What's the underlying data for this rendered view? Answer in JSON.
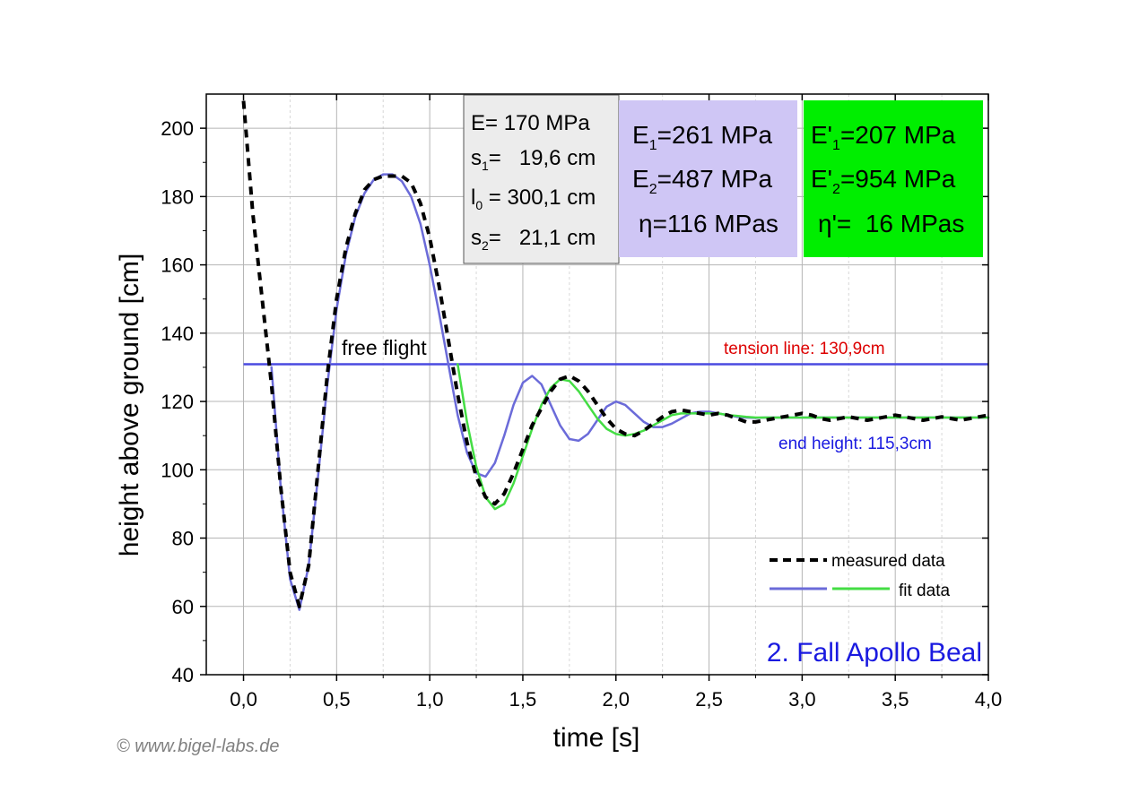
{
  "chart_data": {
    "type": "line",
    "xlabel": "time [s]",
    "ylabel": "height above ground [cm]",
    "xlim": [
      -0.2,
      4.0
    ],
    "ylim": [
      40,
      210
    ],
    "x_ticks": [
      "0,0",
      "0,5",
      "1,0",
      "1,5",
      "2,0",
      "2,5",
      "3,0",
      "3,5",
      "4,0"
    ],
    "y_ticks": [
      "40",
      "60",
      "80",
      "100",
      "120",
      "140",
      "160",
      "180",
      "200"
    ],
    "grid": true,
    "legend_position": "bottom-right",
    "series": [
      {
        "name": "measured data",
        "style": "dashed",
        "color": "#000000",
        "x": [
          0.0,
          0.05,
          0.1,
          0.15,
          0.2,
          0.25,
          0.3,
          0.35,
          0.4,
          0.45,
          0.5,
          0.55,
          0.6,
          0.65,
          0.7,
          0.75,
          0.8,
          0.85,
          0.9,
          0.95,
          1.0,
          1.05,
          1.1,
          1.15,
          1.2,
          1.25,
          1.3,
          1.35,
          1.4,
          1.45,
          1.5,
          1.55,
          1.6,
          1.65,
          1.7,
          1.75,
          1.8,
          1.85,
          1.9,
          1.95,
          2.0,
          2.05,
          2.1,
          2.15,
          2.2,
          2.25,
          2.3,
          2.35,
          2.4,
          2.45,
          2.5,
          2.55,
          2.6,
          2.65,
          2.7,
          2.75,
          2.8,
          2.85,
          2.9,
          2.95,
          3.0,
          3.05,
          3.1,
          3.15,
          3.2,
          3.25,
          3.3,
          3.35,
          3.4,
          3.45,
          3.5,
          3.55,
          3.6,
          3.65,
          3.7,
          3.75,
          3.8,
          3.85,
          3.9,
          3.95,
          4.0
        ],
        "y": [
          208.0,
          175.0,
          150.0,
          125.0,
          95.0,
          70.0,
          60.0,
          72.0,
          100.0,
          128.0,
          150.0,
          165.0,
          175.0,
          182.0,
          185.0,
          186.0,
          186.0,
          186.0,
          184.0,
          178.0,
          168.0,
          154.0,
          138.0,
          122.0,
          108.0,
          98.0,
          92.0,
          90.0,
          93.0,
          99.0,
          106.0,
          113.0,
          118.0,
          123.0,
          126.5,
          127.5,
          126.0,
          123.0,
          119.0,
          115.0,
          112.0,
          110.5,
          110.0,
          111.5,
          113.5,
          115.5,
          117.0,
          117.5,
          117.0,
          116.5,
          116.0,
          116.5,
          116.0,
          115.0,
          114.0,
          114.0,
          114.5,
          115.0,
          115.5,
          116.0,
          116.5,
          116.0,
          115.0,
          114.5,
          115.0,
          115.5,
          115.0,
          114.5,
          115.0,
          115.5,
          116.0,
          115.5,
          115.0,
          114.5,
          115.0,
          115.5,
          115.0,
          114.5,
          115.0,
          115.5,
          116.0
        ]
      },
      {
        "name": "fit data",
        "style": "solid",
        "color": "#6b6bd9",
        "x": [
          0.15,
          0.2,
          0.25,
          0.3,
          0.35,
          0.4,
          0.45,
          0.5,
          0.55,
          0.6,
          0.65,
          0.7,
          0.75,
          0.8,
          0.85,
          0.9,
          0.95,
          1.0,
          1.05,
          1.1,
          1.15,
          1.2,
          1.25,
          1.3,
          1.35,
          1.4,
          1.45,
          1.5,
          1.55,
          1.6,
          1.65,
          1.7,
          1.75,
          1.8,
          1.85,
          1.9,
          1.95,
          2.0,
          2.05,
          2.1,
          2.15,
          2.2,
          2.25,
          2.3,
          2.35,
          2.4,
          2.45,
          2.5,
          2.55,
          2.6,
          2.65,
          2.7,
          2.75,
          2.8,
          2.85,
          2.9,
          2.95,
          3.0,
          3.05,
          3.1,
          3.15,
          3.2,
          3.25,
          3.3,
          3.35,
          3.4,
          3.45,
          3.5,
          3.55,
          3.6,
          3.65,
          3.7,
          3.75,
          3.8,
          3.85,
          3.9,
          3.95,
          4.0
        ],
        "y": [
          130.0,
          95.0,
          68.0,
          59.0,
          72.0,
          98.0,
          125.0,
          147.0,
          163.0,
          174.0,
          181.0,
          185.0,
          186.5,
          186.5,
          184.5,
          180.0,
          172.0,
          160.0,
          146.0,
          130.9,
          116.0,
          105.0,
          99.0,
          98.0,
          102.0,
          110.0,
          119.0,
          125.5,
          127.5,
          125.0,
          119.0,
          113.0,
          109.0,
          108.5,
          110.5,
          114.5,
          118.5,
          120.0,
          119.0,
          116.5,
          114.0,
          112.5,
          112.5,
          113.5,
          115.0,
          116.5,
          117.0,
          117.0,
          116.5,
          116.0,
          115.5,
          115.3,
          115.2,
          115.3,
          115.3,
          115.3,
          115.3,
          115.3,
          115.3,
          115.3,
          115.3,
          115.3,
          115.3,
          115.3,
          115.3,
          115.3,
          115.3,
          115.3,
          115.3,
          115.3,
          115.3,
          115.3,
          115.3,
          115.3,
          115.3,
          115.3,
          115.3,
          115.3
        ]
      },
      {
        "name": "fit data",
        "style": "solid",
        "color": "#44dd44",
        "x": [
          1.15,
          1.2,
          1.25,
          1.3,
          1.35,
          1.4,
          1.45,
          1.5,
          1.55,
          1.6,
          1.65,
          1.7,
          1.75,
          1.8,
          1.85,
          1.9,
          1.95,
          2.0,
          2.05,
          2.1,
          2.15,
          2.2,
          2.25,
          2.3,
          2.35,
          2.4,
          2.45,
          2.5,
          2.55,
          2.6,
          2.65,
          2.7,
          2.75,
          2.8,
          2.85,
          2.9,
          2.95,
          3.0,
          3.05,
          3.1,
          3.15,
          3.2,
          3.25,
          3.3,
          3.35,
          3.4,
          3.45,
          3.5,
          3.55,
          3.6,
          3.65,
          3.7,
          3.75,
          3.8,
          3.85,
          3.9,
          3.95,
          4.0
        ],
        "y": [
          130.9,
          114.0,
          101.0,
          92.0,
          88.5,
          90.0,
          96.0,
          104.0,
          112.0,
          119.0,
          124.0,
          126.5,
          126.0,
          123.0,
          119.0,
          115.0,
          112.0,
          110.5,
          110.0,
          110.5,
          111.5,
          113.0,
          114.5,
          116.0,
          116.5,
          116.5,
          116.5,
          116.5,
          116.5,
          116.0,
          115.8,
          115.5,
          115.3,
          115.3,
          115.3,
          115.3,
          115.3,
          115.3,
          115.3,
          115.3,
          115.3,
          115.3,
          115.3,
          115.3,
          115.3,
          115.3,
          115.3,
          115.3,
          115.3,
          115.3,
          115.3,
          115.3,
          115.3,
          115.3,
          115.3,
          115.3,
          115.3,
          115.3
        ]
      }
    ],
    "reference_lines": [
      {
        "y": 130.9,
        "x_from": 0.0,
        "color": "#4a4ae0",
        "label": "tension line: 130,9cm",
        "label_color": "#dd0000"
      }
    ],
    "annotations": {
      "free_flight": "free flight",
      "end_height": "end height: 115,3cm",
      "end_height_color": "#1a1ae0",
      "case_title": "2. Fall Apollo Beal",
      "case_title_color": "#1a1ae0"
    }
  },
  "parameters": {
    "box_gray_color": "#ececec",
    "box_purple_color": "#cfc6f5",
    "box_green_color": "#00ee00",
    "gray": {
      "E": {
        "main": "E= 170 MPa"
      },
      "s1": {
        "pre": "s",
        "sub": "1",
        "post": "=   19,6 cm"
      },
      "l0": {
        "pre": "l",
        "sub": "0",
        "post": " = 300,1 cm"
      },
      "s2": {
        "pre": "s",
        "sub": "2",
        "post": "=   21,1 cm"
      }
    },
    "purple": {
      "E1": {
        "pre": "E",
        "sub": "1",
        "post": "=261 MPa"
      },
      "E2": {
        "pre": "E",
        "sub": "2",
        "post": "=487 MPa"
      },
      "eta": {
        "main": "η=116 MPas"
      }
    },
    "green": {
      "E1p": {
        "pre": "E'",
        "sub": "1",
        "post": "=207 MPa"
      },
      "E2p": {
        "pre": "E'",
        "sub": "2",
        "post": "=954 MPa"
      },
      "etap": {
        "main": "η'=  16 MPas"
      }
    }
  },
  "legend": {
    "measured": "measured data",
    "fit": "fit data"
  },
  "copyright": "© www.bigel-labs.de"
}
